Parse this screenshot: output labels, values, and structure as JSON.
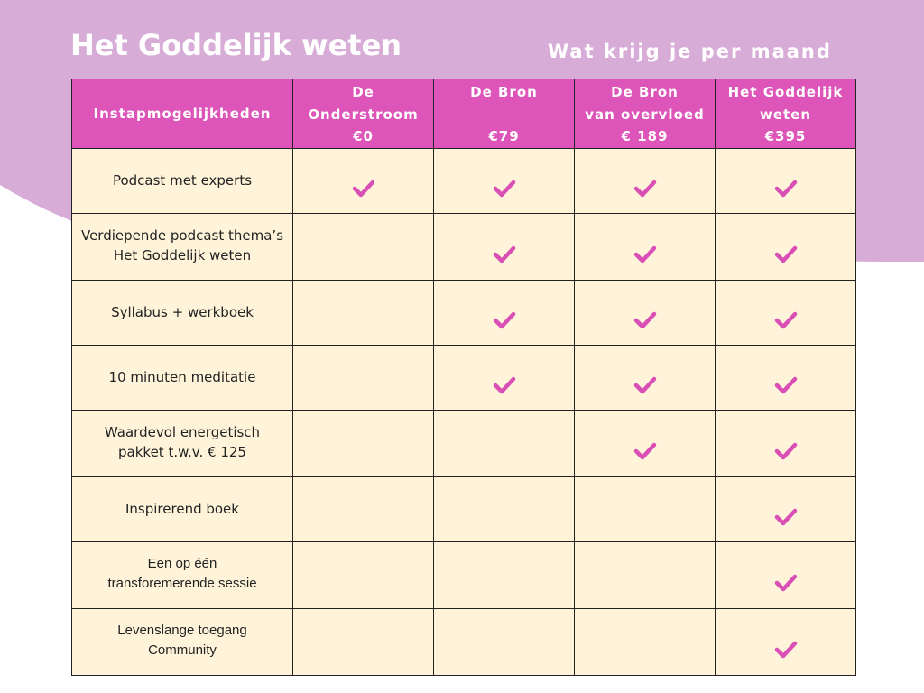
{
  "header": {
    "title": "Het Goddelijk weten",
    "subtitle": "Wat krijg je per maand"
  },
  "colors": {
    "background_shape": "#d7add8",
    "header_cell": "#dd55b8",
    "body_cell": "#fff4da",
    "check": "#d94fb6",
    "border": "#222222"
  },
  "table": {
    "columns": [
      {
        "lines": [
          "Instapmogelijkheden"
        ]
      },
      {
        "lines": [
          "De",
          "Onderstroom",
          "€0"
        ]
      },
      {
        "lines": [
          "De Bron",
          "",
          "€79"
        ]
      },
      {
        "lines": [
          "De Bron",
          "van overvloed",
          "€ 189"
        ]
      },
      {
        "lines": [
          "Het Goddelijk",
          "weten",
          "€395"
        ]
      }
    ],
    "rows": [
      {
        "feature": [
          "Podcast met experts"
        ],
        "checks": [
          true,
          true,
          true,
          true
        ]
      },
      {
        "feature": [
          "Verdiepende podcast thema’s",
          "Het Goddelijk weten"
        ],
        "checks": [
          false,
          true,
          true,
          true
        ]
      },
      {
        "feature": [
          "Syllabus + werkboek"
        ],
        "checks": [
          false,
          true,
          true,
          true
        ]
      },
      {
        "feature": [
          "10 minuten meditatie"
        ],
        "checks": [
          false,
          true,
          true,
          true
        ]
      },
      {
        "feature": [
          "Waardevol energetisch",
          "pakket t.w.v. € 125"
        ],
        "checks": [
          false,
          false,
          true,
          true
        ]
      },
      {
        "feature": [
          "Inspirerend boek"
        ],
        "checks": [
          false,
          false,
          false,
          true
        ]
      },
      {
        "feature": [
          "Een op één",
          "transforemerende sessie"
        ],
        "checks": [
          false,
          false,
          false,
          true
        ]
      },
      {
        "feature": [
          "Levenslange toegang",
          "Community"
        ],
        "checks": [
          false,
          false,
          false,
          true
        ]
      }
    ]
  }
}
